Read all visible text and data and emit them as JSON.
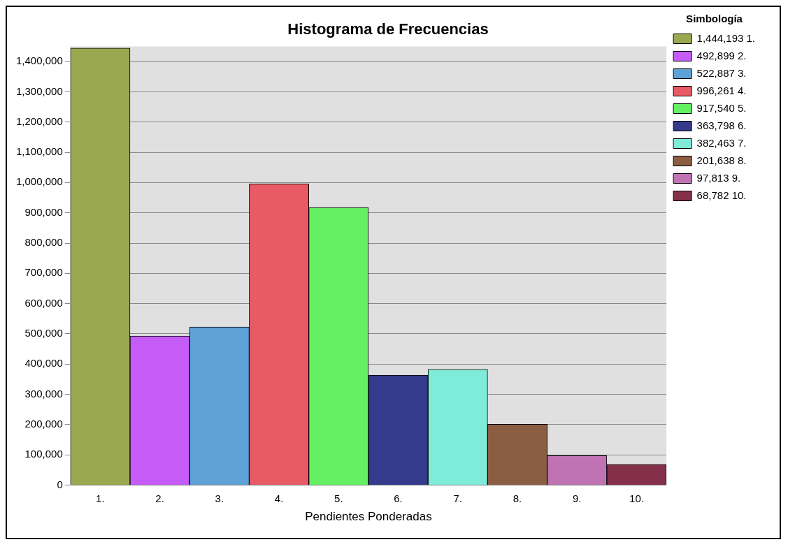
{
  "chart_data": {
    "type": "bar",
    "title": "Histograma de Frecuencias",
    "xlabel": "Pendientes Ponderadas",
    "legend_title": "Simbología",
    "categories": [
      "1.",
      "2.",
      "3.",
      "4.",
      "5.",
      "6.",
      "7.",
      "8.",
      "9.",
      "10."
    ],
    "series": [
      {
        "name": "1,444,193 1.",
        "color": "#9aa84f",
        "values": [
          1444193,
          null,
          null,
          null,
          null,
          null,
          null,
          null,
          null,
          null
        ]
      },
      {
        "name": "492,899 2.",
        "color": "#c65cf8",
        "values": [
          null,
          492899,
          null,
          null,
          null,
          null,
          null,
          null,
          null,
          null
        ]
      },
      {
        "name": "522,887 3.",
        "color": "#5ea1d6",
        "values": [
          null,
          null,
          522887,
          null,
          null,
          null,
          null,
          null,
          null,
          null
        ]
      },
      {
        "name": "996,261 4.",
        "color": "#e85a64",
        "values": [
          null,
          null,
          null,
          996261,
          null,
          null,
          null,
          null,
          null,
          null
        ]
      },
      {
        "name": "917,540 5.",
        "color": "#63f063",
        "values": [
          null,
          null,
          null,
          null,
          917540,
          null,
          null,
          null,
          null,
          null
        ]
      },
      {
        "name": "363,798 6.",
        "color": "#343b8c",
        "values": [
          null,
          null,
          null,
          null,
          null,
          363798,
          null,
          null,
          null,
          null
        ]
      },
      {
        "name": "382,463 7.",
        "color": "#7eecd8",
        "values": [
          null,
          null,
          null,
          null,
          null,
          null,
          382463,
          null,
          null,
          null
        ]
      },
      {
        "name": "201,638 8.",
        "color": "#8b5e43",
        "values": [
          null,
          null,
          null,
          null,
          null,
          null,
          null,
          201638,
          null,
          null
        ]
      },
      {
        "name": "97,813 9.",
        "color": "#c073b3",
        "values": [
          null,
          null,
          null,
          null,
          null,
          null,
          null,
          null,
          97813,
          null
        ]
      },
      {
        "name": "68,782 10.",
        "color": "#85304b",
        "values": [
          null,
          null,
          null,
          null,
          null,
          null,
          null,
          null,
          null,
          68782
        ]
      }
    ],
    "ylim": [
      0,
      1450000
    ],
    "yticks": [
      {
        "value": 0,
        "label": "0"
      },
      {
        "value": 100000,
        "label": "100,000"
      },
      {
        "value": 200000,
        "label": "200,000"
      },
      {
        "value": 300000,
        "label": "300,000"
      },
      {
        "value": 400000,
        "label": "400,000"
      },
      {
        "value": 500000,
        "label": "500,000"
      },
      {
        "value": 600000,
        "label": "600,000"
      },
      {
        "value": 700000,
        "label": "700,000"
      },
      {
        "value": 800000,
        "label": "800,000"
      },
      {
        "value": 900000,
        "label": "900,000"
      },
      {
        "value": 1000000,
        "label": "1,000,000"
      },
      {
        "value": 1100000,
        "label": "1,100,000"
      },
      {
        "value": 1200000,
        "label": "1,200,000"
      },
      {
        "value": 1300000,
        "label": "1,300,000"
      },
      {
        "value": 1400000,
        "label": "1,400,000"
      }
    ],
    "grid": "y",
    "legend": "top right"
  }
}
